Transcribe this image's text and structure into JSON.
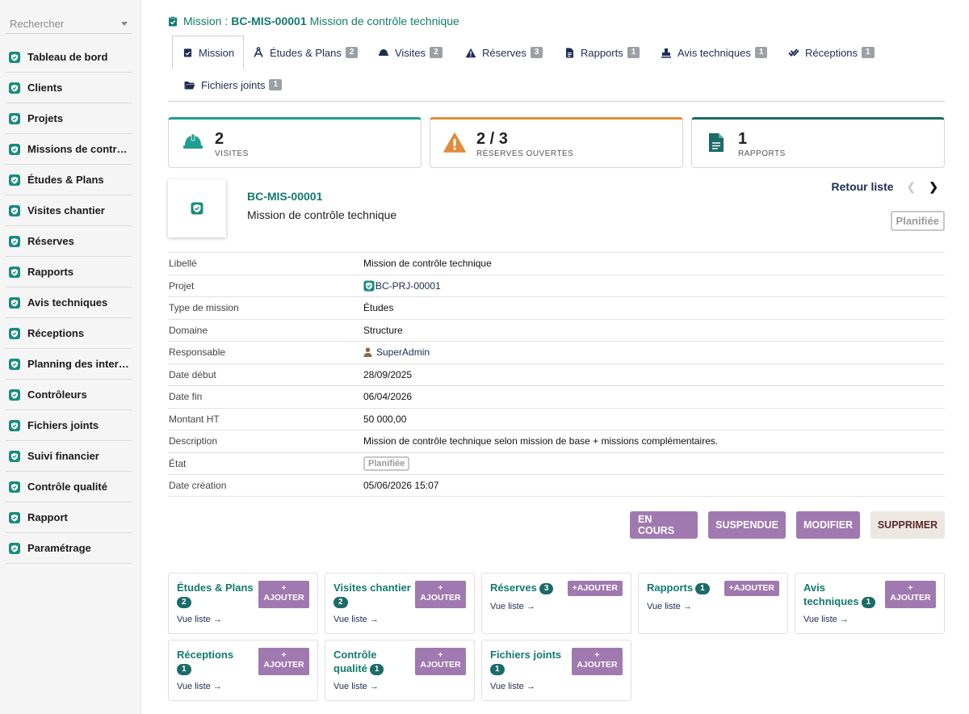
{
  "sidebar": {
    "search_placeholder": "Rechercher",
    "items": [
      {
        "label": "Tableau de bord"
      },
      {
        "label": "Clients"
      },
      {
        "label": "Projets"
      },
      {
        "label": "Missions de contrôle"
      },
      {
        "label": "Études & Plans"
      },
      {
        "label": "Visites chantier"
      },
      {
        "label": "Réserves"
      },
      {
        "label": "Rapports"
      },
      {
        "label": "Avis techniques"
      },
      {
        "label": "Réceptions"
      },
      {
        "label": "Planning des interv…"
      },
      {
        "label": "Contrôleurs"
      },
      {
        "label": "Fichiers joints"
      },
      {
        "label": "Suivi financier"
      },
      {
        "label": "Contrôle qualité"
      },
      {
        "label": "Rapport"
      },
      {
        "label": "Paramétrage"
      }
    ]
  },
  "breadcrumb": {
    "prefix": "Mission :",
    "code": "BC-MIS-00001",
    "name": "Mission de contrôle technique"
  },
  "tabs": [
    {
      "label": "Mission",
      "count": null
    },
    {
      "label": "Études & Plans",
      "count": "2"
    },
    {
      "label": "Visites",
      "count": "2"
    },
    {
      "label": "Réserves",
      "count": "3"
    },
    {
      "label": "Rapports",
      "count": "1"
    },
    {
      "label": "Avis techniques",
      "count": "1"
    },
    {
      "label": "Réceptions",
      "count": "1"
    },
    {
      "label": "Fichiers joints",
      "count": "1"
    }
  ],
  "stats": [
    {
      "value": "2",
      "label": "VISITES",
      "color": "#1f9e92"
    },
    {
      "value": "2 / 3",
      "label": "RÉSERVES OUVERTES",
      "color": "#e08a3c"
    },
    {
      "value": "1",
      "label": "RAPPORTS",
      "color": "#1b6b68"
    }
  ],
  "record": {
    "code": "BC-MIS-00001",
    "name": "Mission de contrôle technique",
    "back_label": "Retour liste",
    "state": "Planifiée"
  },
  "fields": [
    {
      "key": "Libellé",
      "value": "Mission de contrôle technique"
    },
    {
      "key": "Projet",
      "value": "BC-PRJ-00001"
    },
    {
      "key": "Type de mission",
      "value": "Études"
    },
    {
      "key": "Domaine",
      "value": "Structure"
    },
    {
      "key": "Responsable",
      "value": "SuperAdmin"
    },
    {
      "key": "Date début",
      "value": "28/09/2025"
    },
    {
      "key": "Date fin",
      "value": "06/04/2026"
    },
    {
      "key": "Montant HT",
      "value": "50 000,00"
    },
    {
      "key": "Description",
      "value": "Mission de contrôle technique selon mission de base + missions complémentaires."
    },
    {
      "key": "État",
      "value": "Planifiée"
    },
    {
      "key": "Date création",
      "value": "05/06/2026 15:07"
    }
  ],
  "actions": {
    "en_cours": "EN COURS",
    "suspendue": "SUSPENDUE",
    "modifier": "MODIFIER",
    "supprimer": "SUPPRIMER"
  },
  "tiles": [
    {
      "title": "Études & Plans",
      "count": "2",
      "add": "AJOUTER",
      "list": "Vue liste →"
    },
    {
      "title": "Visites chantier",
      "count": "2",
      "add": "AJOUTER",
      "list": "Vue liste →"
    },
    {
      "title": "Réserves",
      "count": "3",
      "add": "AJOUTER",
      "list": "Vue liste →"
    },
    {
      "title": "Rapports",
      "count": "1",
      "add": "AJOUTER",
      "list": "Vue liste →"
    },
    {
      "title": "Avis techniques",
      "count": "1",
      "add": "AJOUTER",
      "list": "Vue liste →"
    },
    {
      "title": "Réceptions",
      "count": "1",
      "add": "AJOUTER",
      "list": "Vue liste →"
    },
    {
      "title": "Contrôle qualité",
      "count": "1",
      "add": "AJOUTER",
      "list": "Vue liste →"
    },
    {
      "title": "Fichiers joints",
      "count": "1",
      "add": "AJOUTER",
      "list": "Vue liste →"
    }
  ]
}
